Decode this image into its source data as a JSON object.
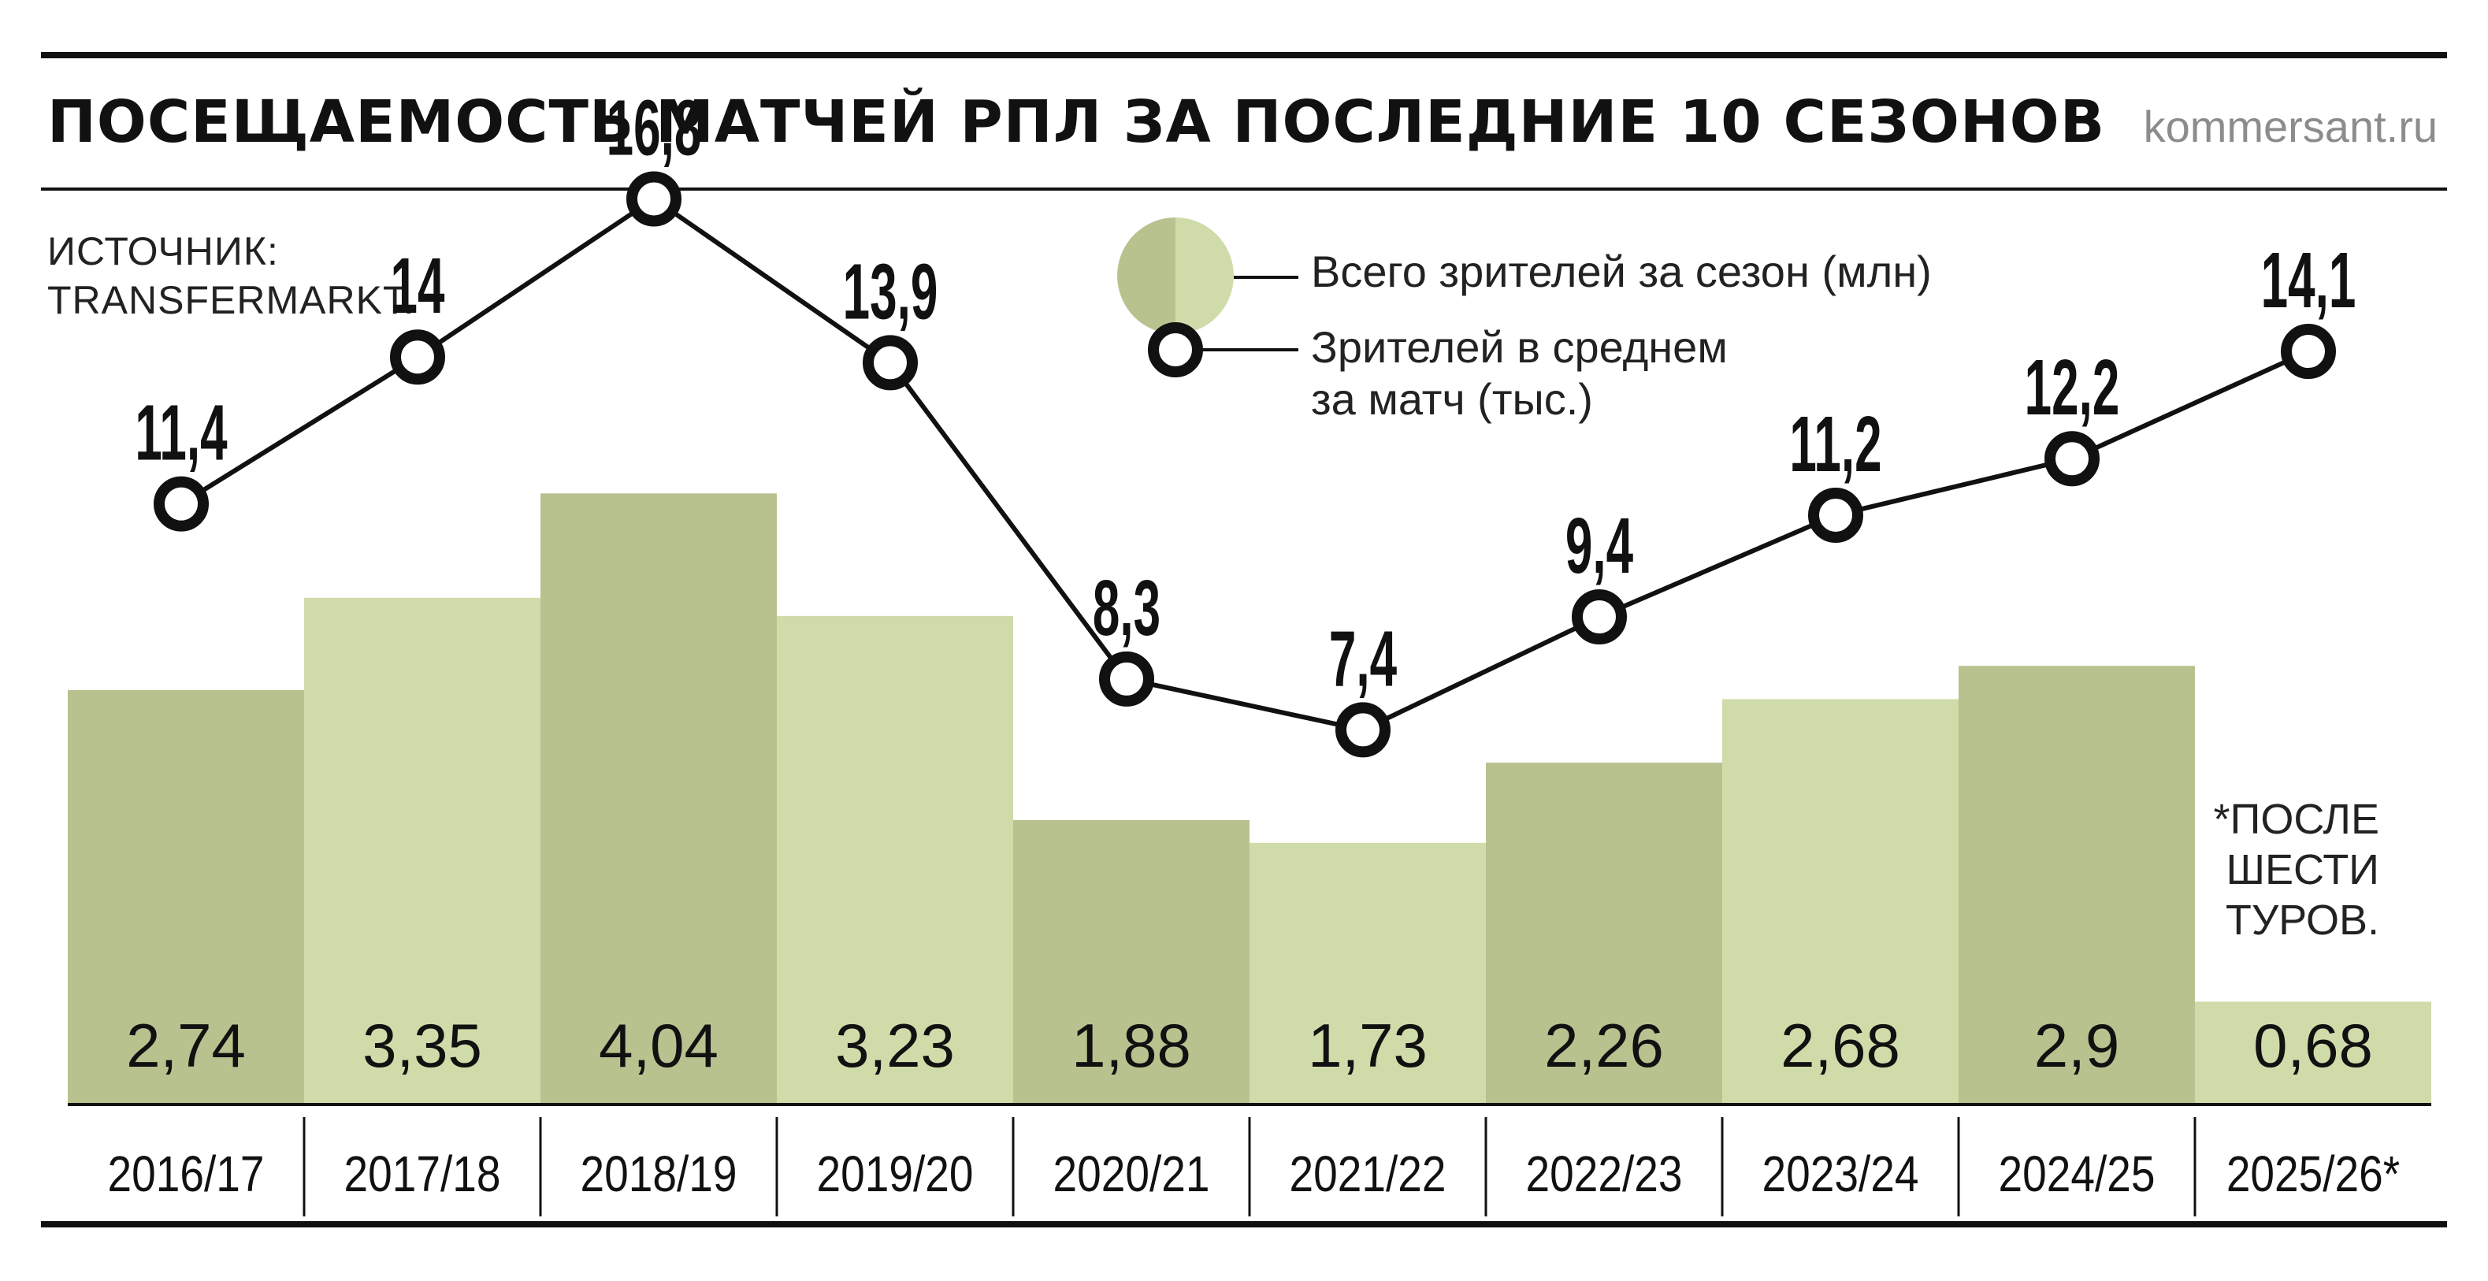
{
  "header": {
    "title": "ПОСЕЩАЕМОСТЬ МАТЧЕЙ РПЛ ЗА ПОСЛЕДНИЕ 10 СЕЗОНОВ",
    "site": "kommersant.ru"
  },
  "source": [
    "ИСТОЧНИК:",
    "TRANSFERMARKT."
  ],
  "note": [
    "*ПОСЛЕ",
    "ШЕСТИ",
    "ТУРОВ."
  ],
  "legend": {
    "bars_label": "Всего зрителей за сезон (млн)",
    "line_label": [
      "Зрителей в среднем",
      "за матч (тыс.)"
    ]
  },
  "colors": {
    "bar_dark": "#b8c28f",
    "bar_light": "#d0dbaa",
    "line": "#111111",
    "marker_fill": "#ffffff"
  },
  "chart_data": {
    "type": "bar",
    "categories": [
      "2016/17",
      "2017/18",
      "2018/19",
      "2019/20",
      "2020/21",
      "2021/22",
      "2022/23",
      "2023/24",
      "2024/25",
      "2025/26*"
    ],
    "series": [
      {
        "name": "Всего зрителей за сезон (млн)",
        "type": "bar",
        "values": [
          2.74,
          3.35,
          4.04,
          3.23,
          1.88,
          1.73,
          2.26,
          2.68,
          2.9,
          0.68
        ],
        "labels": [
          "2,74",
          "3,35",
          "4,04",
          "3,23",
          "1,88",
          "1,73",
          "2,26",
          "2,68",
          "2,9",
          "0,68"
        ]
      },
      {
        "name": "Зрителей в среднем за матч (тыс.)",
        "type": "line",
        "values": [
          11.4,
          14,
          16.8,
          13.9,
          8.3,
          7.4,
          9.4,
          11.2,
          12.2,
          14.1
        ],
        "labels": [
          "11,4",
          "14",
          "16,8",
          "13,9",
          "8,3",
          "7,4",
          "9,4",
          "11,2",
          "12,2",
          "14,1"
        ]
      }
    ],
    "legend": "top-right",
    "grid": false
  }
}
